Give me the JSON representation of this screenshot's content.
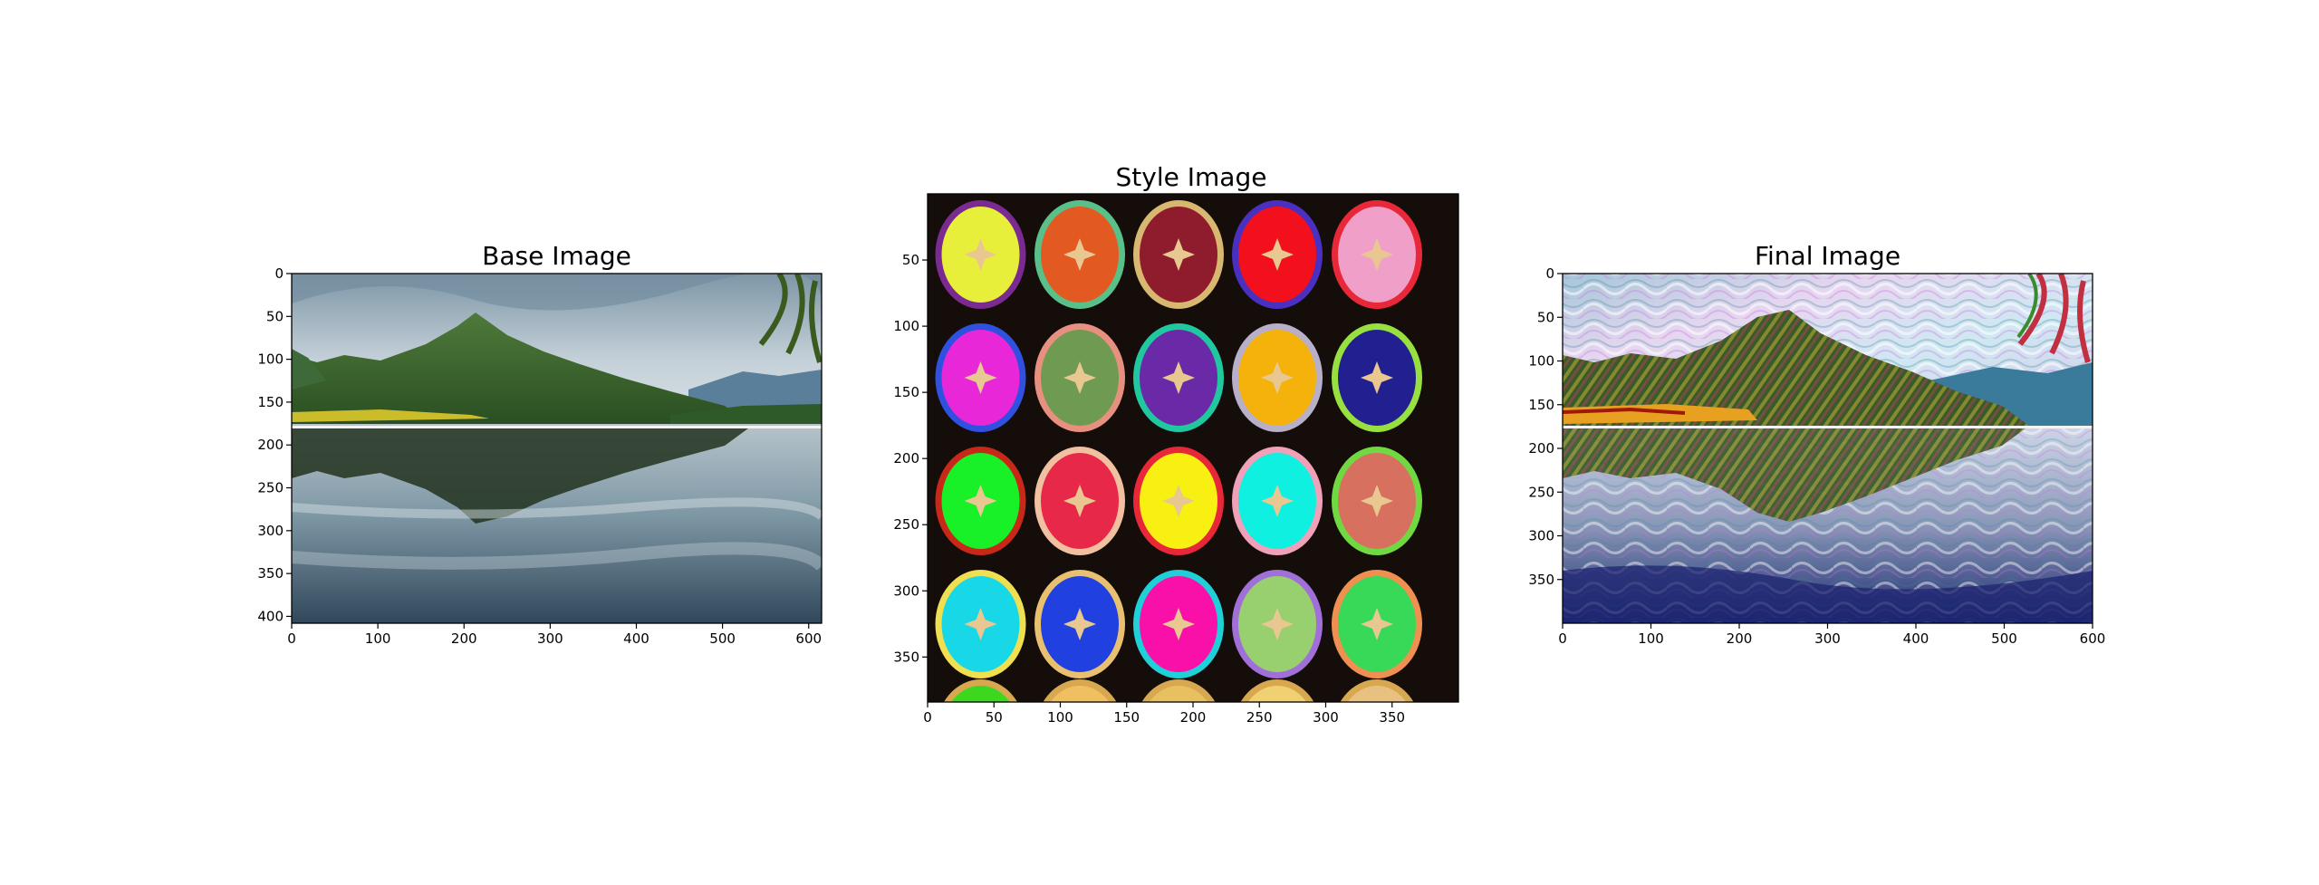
{
  "chart_data": [
    {
      "type": "image",
      "title": "Base Image",
      "image": "landscape-lake-mountain-reflection",
      "xlim": [
        0,
        615
      ],
      "ylim": [
        408,
        0
      ],
      "xticks": [
        0,
        100,
        200,
        300,
        400,
        500,
        600
      ],
      "yticks": [
        0,
        50,
        100,
        150,
        200,
        250,
        300,
        350,
        400
      ]
    },
    {
      "type": "image",
      "title": "Style Image",
      "image": "colorful-citrus-slices-grid",
      "xlim": [
        0,
        400
      ],
      "ylim": [
        384,
        0
      ],
      "xticks": [
        0,
        50,
        100,
        150,
        200,
        250,
        300,
        350
      ],
      "yticks": [
        50,
        100,
        150,
        200,
        250,
        300,
        350
      ]
    },
    {
      "type": "image",
      "title": "Final Image",
      "image": "stylized-lake-mountain-reflection",
      "xlim": [
        0,
        600
      ],
      "ylim": [
        400,
        0
      ],
      "xticks": [
        0,
        100,
        200,
        300,
        400,
        500,
        600
      ],
      "yticks": [
        0,
        50,
        100,
        150,
        200,
        250,
        300,
        350
      ]
    }
  ],
  "colors": {
    "lime": "#e8ef3a",
    "orange": "#e25a22",
    "maroon": "#8e1c2c",
    "red": "#f2101c",
    "pink": "#f0a0c8",
    "magenta": "#e828d8",
    "sage": "#6e9a52",
    "purple": "#6a2aa8",
    "amber": "#f5b20a",
    "navy": "#222090",
    "green": "#18f028",
    "crimson": "#e82848",
    "yellow": "#f8f010",
    "cyan": "#10f0e0",
    "salmon": "#d87060",
    "sky": "#18d8e8",
    "blue": "#2040e0",
    "hotpink": "#f810a8",
    "lightgreen": "#98d070",
    "emerald": "#38d858"
  }
}
